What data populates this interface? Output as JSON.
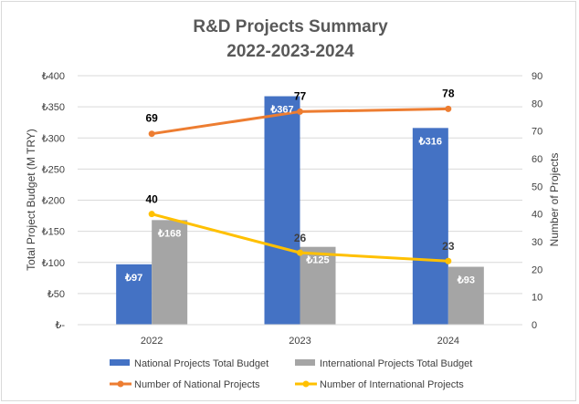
{
  "chart_data": {
    "type": "bar",
    "title_line1": "R&D Projects Summary",
    "title_line2": "2022-2023-2024",
    "categories": [
      "2022",
      "2023",
      "2024"
    ],
    "ylabel_left": "Total Project Budget (M TRY)",
    "ylabel_right": "Number of Projects",
    "ylim_left": [
      0,
      400
    ],
    "ylim_right": [
      0,
      90
    ],
    "left_ticks": [
      "₺-",
      "₺50",
      "₺100",
      "₺150",
      "₺200",
      "₺250",
      "₺300",
      "₺350",
      "₺400"
    ],
    "right_ticks": [
      "0",
      "10",
      "20",
      "30",
      "40",
      "50",
      "60",
      "70",
      "80",
      "90"
    ],
    "currency_symbol": "₺",
    "bar_series": [
      {
        "name": "National Projects Total Budget",
        "values": [
          97,
          367,
          316
        ],
        "labels": [
          "₺97",
          "₺367",
          "₺316"
        ],
        "color": "#4472c4"
      },
      {
        "name": "International Projects Total Budget",
        "values": [
          168,
          125,
          93
        ],
        "labels": [
          "₺168",
          "₺125",
          "₺93"
        ],
        "color": "#a5a5a5"
      }
    ],
    "line_series": [
      {
        "name": "Number of National Projects",
        "values": [
          69,
          77,
          78
        ],
        "labels": [
          "69",
          "77",
          "78"
        ],
        "color": "#ed7d31"
      },
      {
        "name": "Number of International Projects",
        "values": [
          40,
          26,
          23
        ],
        "labels": [
          "40",
          "26",
          "23"
        ],
        "color": "#ffc000"
      }
    ]
  }
}
